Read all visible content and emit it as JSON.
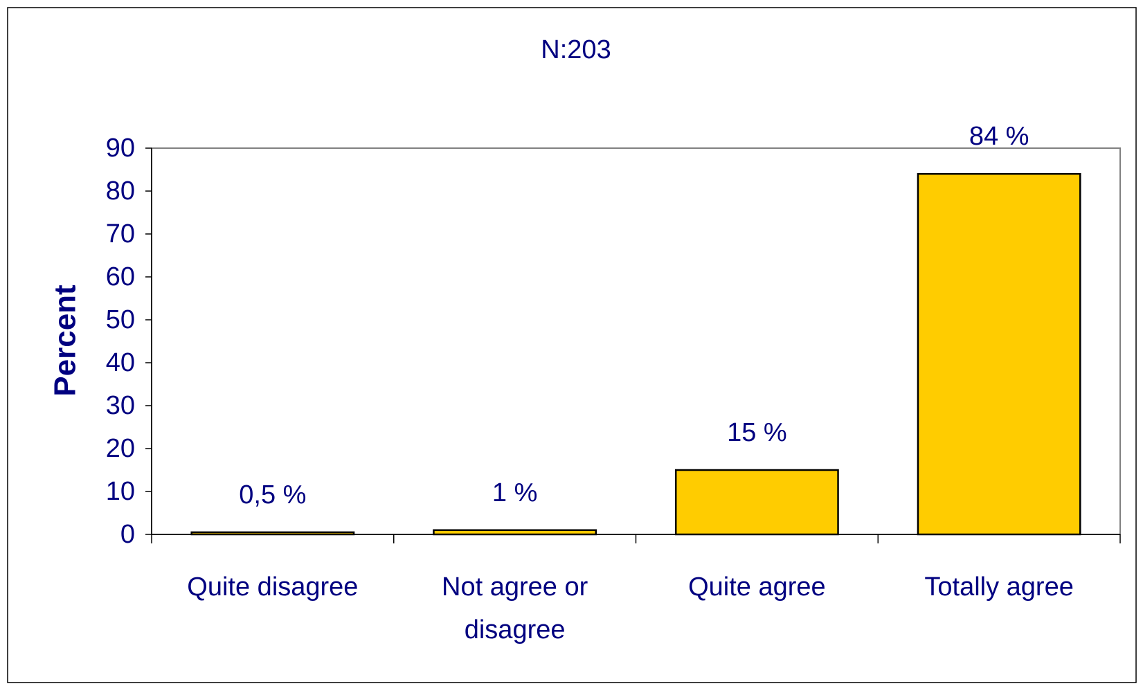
{
  "chart_data": {
    "type": "bar",
    "title": "N:203",
    "y_label": "Percent",
    "categories": [
      "Quite disagree",
      "Not agree or disagree",
      "Quite agree",
      "Totally agree"
    ],
    "values": [
      0.5,
      1,
      15,
      84
    ],
    "value_labels": [
      "0,5 %",
      "1 %",
      "15 %",
      "84 %"
    ],
    "color": "#ffcc00",
    "ylim": [
      0,
      90
    ],
    "yticks": [
      0,
      10,
      20,
      30,
      40,
      50,
      60,
      70,
      80,
      90
    ],
    "grid": false
  }
}
